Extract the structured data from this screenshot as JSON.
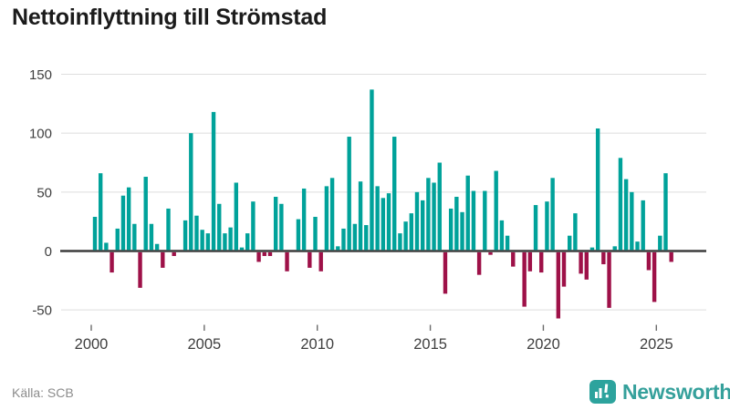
{
  "title": "Nettoinflyttning till Strömstad",
  "footer": {
    "source": "Källa: SCB",
    "brand": "Newsworthy"
  },
  "colors": {
    "positive_bar": "#00a29a",
    "negative_bar": "#9e1148",
    "zero_line": "#3d3d3d",
    "gridline": "#dedede",
    "axis_text": "#3f3f3f",
    "tick_mark": "#6b6b6b",
    "title_text": "#1b1b1b",
    "source_text": "#8c8c8c",
    "brand_teal": "#2da39d",
    "wordmark_teal": "#35a09b",
    "glyph_white": "#ffffff",
    "background": "#ffffff"
  },
  "chart_data": {
    "type": "bar",
    "title": "Nettoinflyttning till Strömstad",
    "x_unit": "quarter",
    "x_start": "2000-Q1",
    "x_end": "2025-Q4",
    "x_tick_labels": [
      "2000",
      "2005",
      "2010",
      "2015",
      "2020",
      "2025"
    ],
    "y_ticks": [
      150,
      100,
      50,
      0,
      -50
    ],
    "ylim": [
      -65,
      155
    ],
    "grid": true,
    "legend": "none",
    "values": [
      0,
      29,
      66,
      7,
      -18,
      19,
      47,
      54,
      23,
      -31,
      63,
      23,
      6,
      -14,
      36,
      -4,
      0,
      26,
      100,
      30,
      18,
      15,
      118,
      40,
      15,
      20,
      58,
      3,
      15,
      42,
      -9,
      -4,
      -4,
      46,
      40,
      -17,
      0,
      27,
      53,
      -14,
      29,
      -17,
      55,
      62,
      4,
      19,
      97,
      23,
      59,
      22,
      137,
      55,
      45,
      49,
      97,
      15,
      25,
      32,
      50,
      43,
      62,
      58,
      75,
      -36,
      36,
      46,
      33,
      64,
      51,
      -20,
      51,
      -3,
      68,
      26,
      13,
      -13,
      0,
      -47,
      -17,
      39,
      -18,
      42,
      62,
      -57,
      -30,
      13,
      32,
      -19,
      -24,
      3,
      104,
      -11,
      -48,
      4,
      79,
      61,
      50,
      8,
      43,
      -16,
      -43,
      13,
      66,
      -9
    ]
  }
}
